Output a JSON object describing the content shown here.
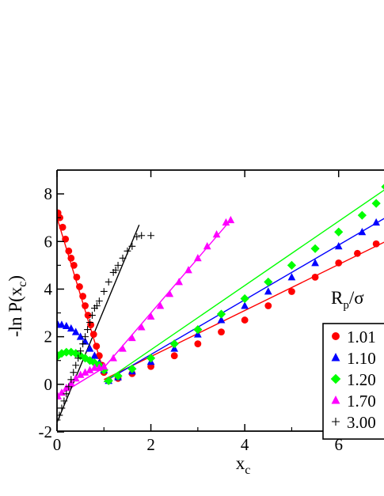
{
  "chart_data": {
    "type": "scatter",
    "xlabel": "x",
    "xlabel_sub": "c",
    "ylabel_prefix": "-ln P(x",
    "ylabel_sub": "c",
    "ylabel_suffix": ")",
    "xlim": [
      0,
      7
    ],
    "ylim": [
      -2,
      9
    ],
    "x_ticks": [
      0,
      2,
      4,
      6
    ],
    "y_ticks": [
      -2,
      0,
      2,
      4,
      6,
      8
    ],
    "legend_title_main": "R",
    "legend_title_sub": "p",
    "legend_title_rest": "/σ",
    "legend_placement": "right",
    "grid": false,
    "series": [
      {
        "name": "1.01",
        "color": "#ff0000",
        "marker": "circle",
        "points": [
          [
            0.02,
            7.2
          ],
          [
            0.06,
            7.0
          ],
          [
            0.12,
            6.6
          ],
          [
            0.18,
            6.1
          ],
          [
            0.25,
            5.6
          ],
          [
            0.3,
            5.3
          ],
          [
            0.36,
            5.0
          ],
          [
            0.42,
            4.5
          ],
          [
            0.48,
            4.1
          ],
          [
            0.55,
            3.7
          ],
          [
            0.6,
            3.3
          ],
          [
            0.66,
            2.9
          ],
          [
            0.72,
            2.5
          ],
          [
            0.78,
            2.1
          ],
          [
            0.84,
            1.6
          ],
          [
            0.9,
            1.2
          ],
          [
            0.96,
            0.8
          ],
          [
            1.0,
            0.5
          ],
          [
            1.1,
            0.15
          ],
          [
            1.3,
            0.25
          ],
          [
            1.6,
            0.45
          ],
          [
            2.0,
            0.75
          ],
          [
            2.5,
            1.2
          ],
          [
            3.0,
            1.7
          ],
          [
            3.5,
            2.2
          ],
          [
            4.0,
            2.7
          ],
          [
            4.5,
            3.3
          ],
          [
            5.0,
            3.9
          ],
          [
            5.5,
            4.5
          ],
          [
            6.0,
            5.1
          ],
          [
            6.4,
            5.5
          ],
          [
            6.8,
            5.9
          ]
        ],
        "fit": [
          [
            0,
            7.0
          ],
          [
            1.0,
            0.5
          ],
          [
            1.0,
            0.2
          ],
          [
            7.0,
            6.0
          ]
        ]
      },
      {
        "name": "1.10",
        "color": "#0000ff",
        "marker": "triangle",
        "points": [
          [
            0.02,
            2.5
          ],
          [
            0.1,
            2.5
          ],
          [
            0.2,
            2.45
          ],
          [
            0.3,
            2.35
          ],
          [
            0.4,
            2.2
          ],
          [
            0.5,
            2.0
          ],
          [
            0.6,
            1.8
          ],
          [
            0.7,
            1.5
          ],
          [
            0.8,
            1.2
          ],
          [
            0.9,
            0.9
          ],
          [
            1.0,
            0.6
          ],
          [
            1.1,
            0.15
          ],
          [
            1.3,
            0.3
          ],
          [
            1.6,
            0.55
          ],
          [
            2.0,
            0.95
          ],
          [
            2.5,
            1.5
          ],
          [
            3.0,
            2.1
          ],
          [
            3.5,
            2.7
          ],
          [
            4.0,
            3.3
          ],
          [
            4.5,
            3.9
          ],
          [
            5.0,
            4.5
          ],
          [
            5.5,
            5.1
          ],
          [
            6.0,
            5.8
          ],
          [
            6.5,
            6.4
          ],
          [
            6.8,
            6.8
          ]
        ],
        "fit": [
          [
            1.0,
            0.1
          ],
          [
            7.0,
            7.0
          ]
        ]
      },
      {
        "name": "1.20",
        "color": "#00ff00",
        "marker": "diamond",
        "points": [
          [
            0.02,
            1.2
          ],
          [
            0.1,
            1.3
          ],
          [
            0.2,
            1.35
          ],
          [
            0.3,
            1.35
          ],
          [
            0.4,
            1.3
          ],
          [
            0.5,
            1.2
          ],
          [
            0.6,
            1.1
          ],
          [
            0.7,
            1.0
          ],
          [
            0.8,
            0.9
          ],
          [
            0.9,
            0.8
          ],
          [
            1.0,
            0.6
          ],
          [
            1.1,
            0.15
          ],
          [
            1.3,
            0.35
          ],
          [
            1.6,
            0.65
          ],
          [
            2.0,
            1.1
          ],
          [
            2.5,
            1.7
          ],
          [
            3.0,
            2.3
          ],
          [
            3.5,
            2.95
          ],
          [
            4.0,
            3.6
          ],
          [
            4.5,
            4.3
          ],
          [
            5.0,
            5.0
          ],
          [
            5.5,
            5.7
          ],
          [
            6.0,
            6.4
          ],
          [
            6.5,
            7.1
          ],
          [
            6.8,
            7.6
          ],
          [
            7.0,
            8.3
          ]
        ],
        "fit": [
          [
            1.0,
            0.1
          ],
          [
            7.0,
            8.2
          ]
        ]
      },
      {
        "name": "1.70",
        "color": "#ff00ff",
        "marker": "triangle",
        "points": [
          [
            0.02,
            -0.5
          ],
          [
            0.1,
            -0.35
          ],
          [
            0.2,
            -0.15
          ],
          [
            0.3,
            0.05
          ],
          [
            0.4,
            0.25
          ],
          [
            0.5,
            0.4
          ],
          [
            0.6,
            0.5
          ],
          [
            0.7,
            0.6
          ],
          [
            0.8,
            0.7
          ],
          [
            0.9,
            0.7
          ],
          [
            1.0,
            0.75
          ],
          [
            1.2,
            1.1
          ],
          [
            1.4,
            1.5
          ],
          [
            1.6,
            1.95
          ],
          [
            1.8,
            2.4
          ],
          [
            2.0,
            2.85
          ],
          [
            2.2,
            3.3
          ],
          [
            2.4,
            3.8
          ],
          [
            2.6,
            4.3
          ],
          [
            2.8,
            4.8
          ],
          [
            3.0,
            5.3
          ],
          [
            3.2,
            5.8
          ],
          [
            3.4,
            6.3
          ],
          [
            3.6,
            6.8
          ],
          [
            3.7,
            6.9
          ]
        ],
        "fit": [
          [
            0,
            -0.5
          ],
          [
            1.0,
            0.7
          ],
          [
            1.0,
            0.7
          ],
          [
            3.7,
            6.9
          ]
        ]
      },
      {
        "name": "3.00",
        "color": "#000000",
        "marker": "plus",
        "points": [
          [
            0.0,
            -1.5
          ],
          [
            0.05,
            -1.3
          ],
          [
            0.1,
            -1.0
          ],
          [
            0.15,
            -0.7
          ],
          [
            0.2,
            -0.4
          ],
          [
            0.25,
            -0.1
          ],
          [
            0.3,
            0.2
          ],
          [
            0.35,
            0.5
          ],
          [
            0.4,
            0.8
          ],
          [
            0.45,
            1.1
          ],
          [
            0.5,
            1.4
          ],
          [
            0.55,
            1.7
          ],
          [
            0.6,
            2.0
          ],
          [
            0.65,
            2.3
          ],
          [
            0.7,
            2.6
          ],
          [
            0.75,
            2.9
          ],
          [
            0.8,
            3.2
          ],
          [
            0.85,
            3.3
          ],
          [
            0.9,
            3.5
          ],
          [
            1.0,
            3.9
          ],
          [
            1.1,
            4.3
          ],
          [
            1.2,
            4.7
          ],
          [
            1.25,
            4.8
          ],
          [
            1.3,
            5.0
          ],
          [
            1.4,
            5.3
          ],
          [
            1.5,
            5.6
          ],
          [
            1.6,
            5.8
          ],
          [
            1.7,
            6.2
          ],
          [
            1.8,
            6.25
          ],
          [
            2.0,
            6.25
          ]
        ],
        "fit": [
          [
            0,
            -1.6
          ],
          [
            1.75,
            6.7
          ]
        ]
      }
    ]
  }
}
